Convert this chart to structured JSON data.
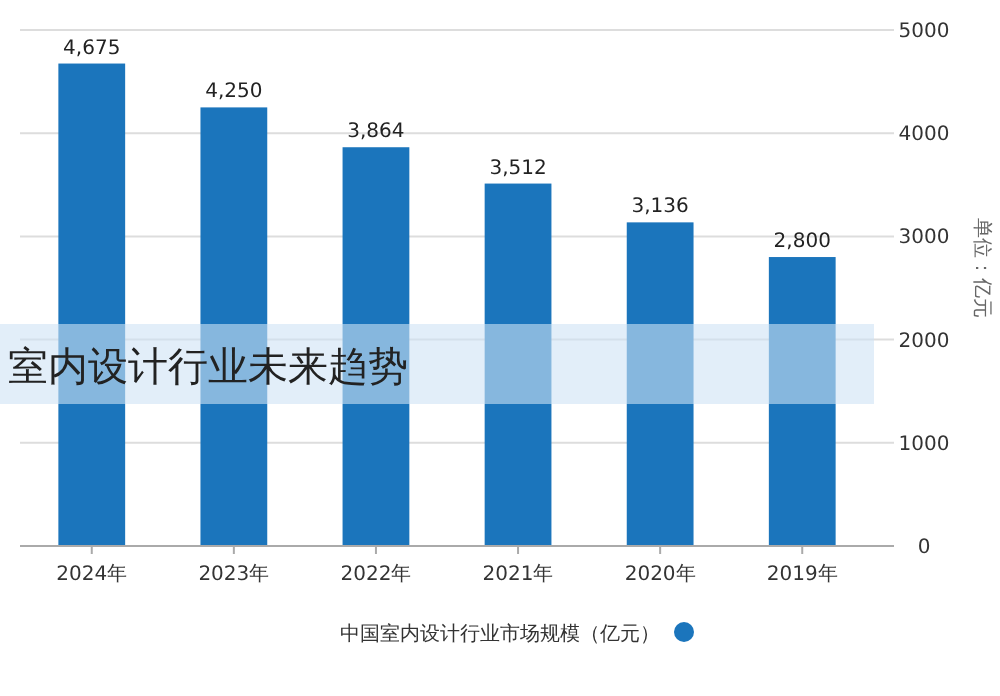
{
  "chart_data": {
    "type": "bar",
    "title": "室内设计行业未来趋势",
    "ylabel": "单位：亿元",
    "categories": [
      "2024年",
      "2023年",
      "2022年",
      "2021年",
      "2020年",
      "2019年"
    ],
    "series": [
      {
        "name": "中国室内设计行业市场规模（亿元）",
        "color": "#1b75bc",
        "values": [
          4675,
          4250,
          3864,
          3512,
          3136,
          2800
        ],
        "value_labels": [
          "4,675",
          "4,250",
          "3,864",
          "3,512",
          "3,136",
          "2,800"
        ]
      }
    ],
    "ylim": [
      0,
      5000
    ],
    "yticks": [
      0,
      1000,
      2000,
      3000,
      4000,
      5000
    ],
    "grid": "y",
    "legend": "bottom"
  }
}
